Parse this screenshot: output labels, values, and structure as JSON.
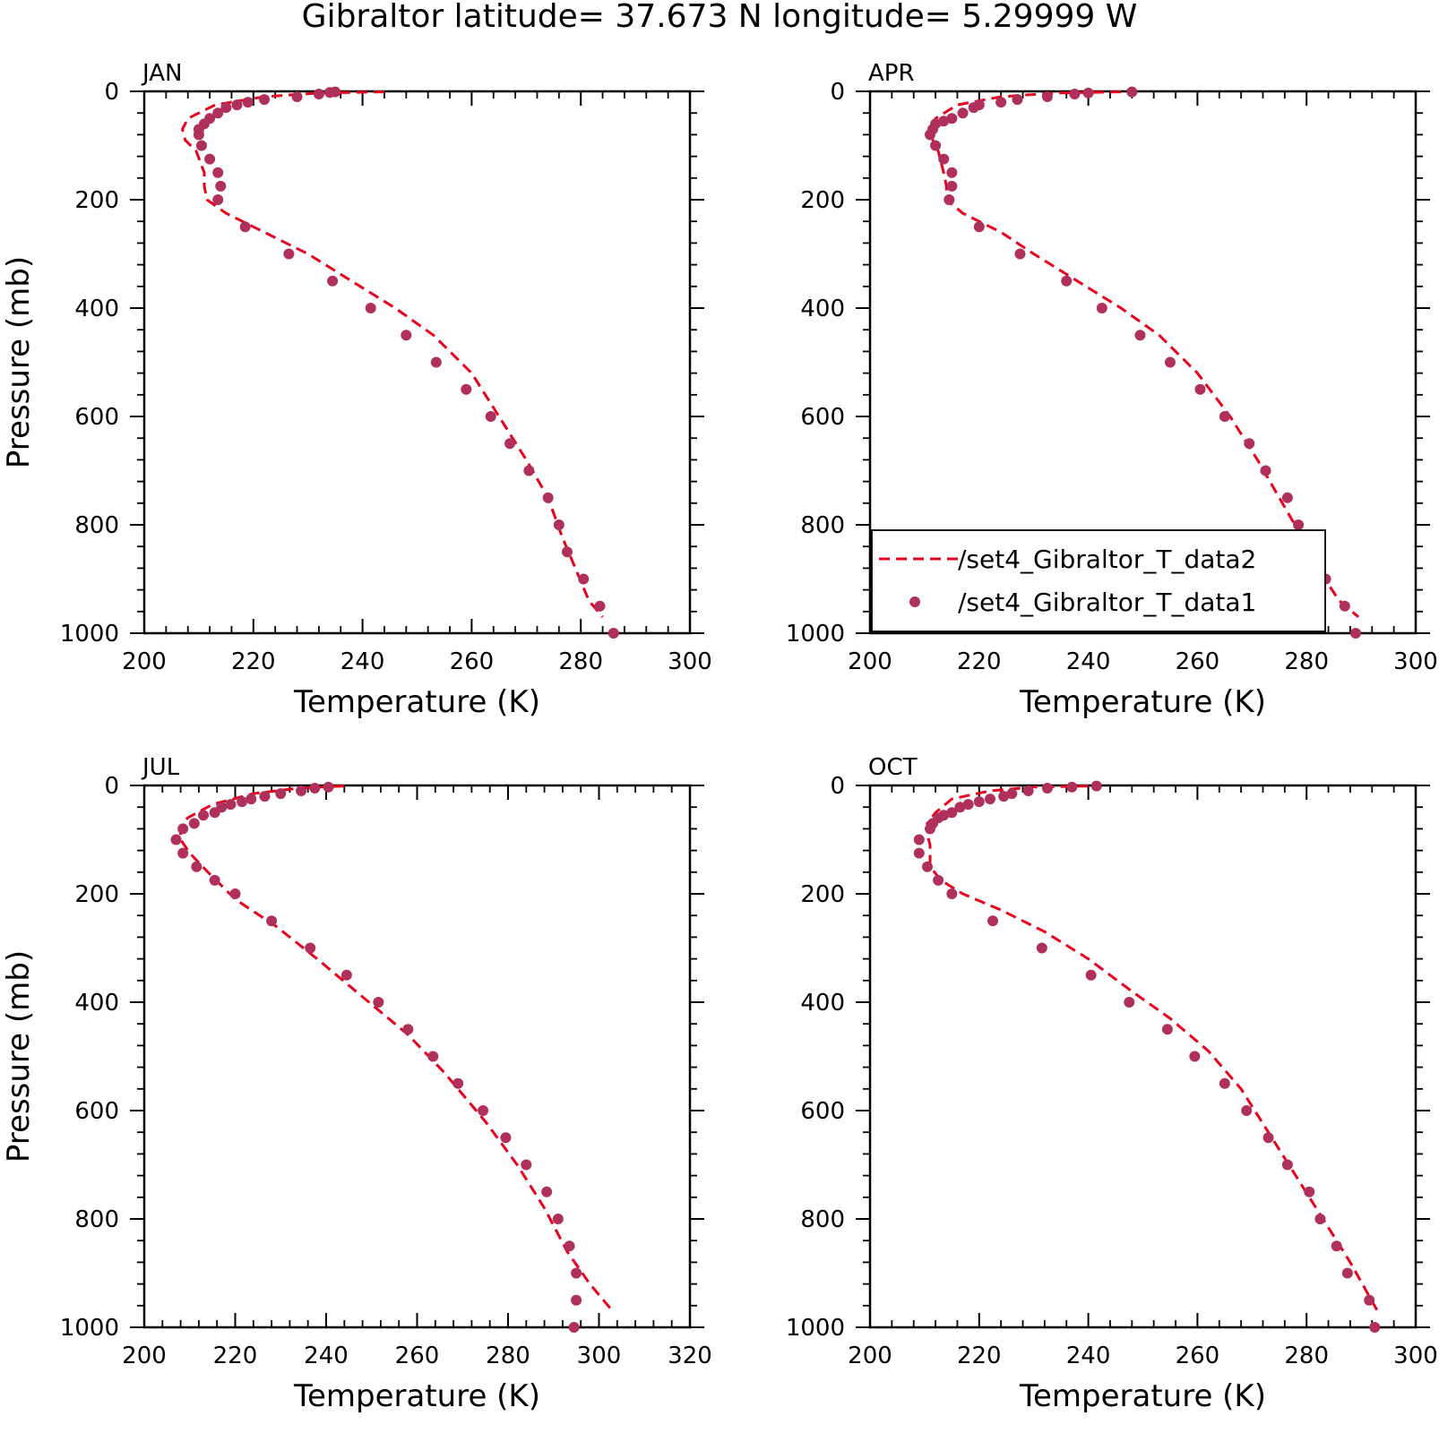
{
  "figure": {
    "title": "Gibraltor  latitude= 37.673 N longitude= 5.29999 W"
  },
  "colors": {
    "model_line": "#e8001c",
    "obs_points": "#b0305c",
    "axes": "#000000"
  },
  "chart_data": [
    {
      "type": "line",
      "panel": "JAN",
      "xlabel": "Temperature (K)",
      "ylabel": "Pressure (mb)",
      "xlim": [
        200,
        300
      ],
      "ylim": [
        1000,
        0
      ],
      "xticks": [
        200,
        220,
        240,
        260,
        280,
        300
      ],
      "yticks": [
        0,
        200,
        400,
        600,
        800,
        1000
      ],
      "series": [
        {
          "name": "/set4_Gibraltor_T_data2",
          "style": "dashed",
          "x": [
            244,
            232,
            222,
            213,
            208,
            207,
            207.5,
            209.5,
            211,
            211,
            211.5,
            215,
            222,
            230,
            238,
            246,
            253,
            260,
            265,
            270,
            274,
            276.5,
            279,
            281.5,
            284
          ],
          "y": [
            1,
            3,
            10,
            25,
            50,
            70,
            90,
            110,
            150,
            175,
            200,
            225,
            260,
            300,
            350,
            400,
            450,
            520,
            600,
            680,
            750,
            820,
            880,
            940,
            970
          ]
        },
        {
          "name": "/set4_Gibraltor_T_data1",
          "style": "points",
          "x": [
            235,
            234,
            232,
            228,
            222,
            219,
            217,
            215,
            213.5,
            212,
            211,
            210,
            210,
            210.5,
            212,
            213.5,
            214,
            213.5,
            218.5,
            226.5,
            234.5,
            241.5,
            248,
            253.5,
            259,
            263.5,
            267,
            270.5,
            274,
            276,
            277.5,
            280.5,
            283.5,
            286
          ],
          "y": [
            1,
            2,
            5,
            10,
            15,
            20,
            25,
            30,
            40,
            50,
            60,
            70,
            80,
            100,
            125,
            150,
            175,
            200,
            250,
            300,
            350,
            400,
            450,
            500,
            550,
            600,
            650,
            700,
            750,
            800,
            850,
            900,
            950,
            1000
          ]
        }
      ]
    },
    {
      "type": "line",
      "panel": "APR",
      "xlabel": "Temperature (K)",
      "ylabel": "",
      "xlim": [
        200,
        300
      ],
      "ylim": [
        1000,
        0
      ],
      "xticks": [
        200,
        220,
        240,
        260,
        280,
        300
      ],
      "yticks": [
        0,
        200,
        400,
        600,
        800,
        1000
      ],
      "legend": {
        "position": "bottom-right",
        "entries": [
          "/set4_Gibraltor_T_data2",
          "/set4_Gibraltor_T_data1"
        ]
      },
      "series": [
        {
          "name": "/set4_Gibraltor_T_data2",
          "style": "dashed",
          "x": [
            246,
            234,
            224,
            216,
            212,
            211,
            211.5,
            212.5,
            213.5,
            214,
            214,
            217,
            224,
            230,
            238,
            246,
            253,
            260,
            266,
            271,
            275,
            279,
            282,
            286,
            289.5
          ],
          "y": [
            1,
            3,
            10,
            25,
            50,
            70,
            90,
            110,
            150,
            175,
            200,
            225,
            260,
            300,
            350,
            400,
            450,
            520,
            600,
            680,
            750,
            820,
            880,
            940,
            970
          ]
        },
        {
          "name": "/set4_Gibraltor_T_data1",
          "style": "points",
          "x": [
            248,
            240,
            237.5,
            232.5,
            227,
            224,
            220,
            219,
            217,
            215,
            213.5,
            212,
            211.5,
            211,
            212,
            213.5,
            215,
            215,
            214.5,
            220,
            227.5,
            236,
            242.5,
            249.5,
            255,
            260.5,
            265,
            269.5,
            272.5,
            276.5,
            278.5,
            281,
            283.5,
            287,
            289
          ],
          "y": [
            1,
            3,
            5,
            10,
            15,
            20,
            25,
            30,
            40,
            50,
            55,
            60,
            70,
            80,
            100,
            125,
            150,
            175,
            200,
            250,
            300,
            350,
            400,
            450,
            500,
            550,
            600,
            650,
            700,
            750,
            800,
            850,
            900,
            950,
            1000
          ]
        }
      ]
    },
    {
      "type": "line",
      "panel": "JUL",
      "xlabel": "Temperature (K)",
      "ylabel": "Pressure (mb)",
      "xlim": [
        200,
        320
      ],
      "ylim": [
        1000,
        0
      ],
      "xticks": [
        200,
        220,
        240,
        260,
        280,
        300,
        320
      ],
      "yticks": [
        0,
        200,
        400,
        600,
        800,
        1000
      ],
      "series": [
        {
          "name": "/set4_Gibraltor_T_data2",
          "style": "dashed",
          "x": [
            244,
            234,
            224,
            215,
            209.5,
            208,
            208,
            210,
            214,
            220,
            229,
            238,
            248,
            258,
            266,
            275,
            282,
            288,
            293,
            298,
            303
          ],
          "y": [
            1,
            5,
            15,
            35,
            60,
            80,
            100,
            125,
            160,
            210,
            260,
            320,
            390,
            460,
            530,
            620,
            700,
            780,
            860,
            920,
            970
          ]
        },
        {
          "name": "/set4_Gibraltor_T_data1",
          "style": "points",
          "x": [
            240.5,
            237.5,
            234.5,
            230,
            226.5,
            223.5,
            221.5,
            219,
            217,
            215.5,
            213,
            211,
            208.5,
            207,
            208.5,
            211.5,
            215.5,
            220,
            228,
            236.5,
            244.5,
            251.5,
            258,
            263.5,
            269,
            274.5,
            279.5,
            284,
            288.5,
            291,
            293.5,
            295,
            295,
            294.5
          ],
          "y": [
            3,
            5,
            10,
            15,
            20,
            25,
            30,
            35,
            40,
            50,
            55,
            70,
            80,
            100,
            125,
            150,
            175,
            200,
            250,
            300,
            350,
            400,
            450,
            500,
            550,
            600,
            650,
            700,
            750,
            800,
            850,
            900,
            950,
            1000
          ]
        }
      ]
    },
    {
      "type": "line",
      "panel": "OCT",
      "xlabel": "Temperature (K)",
      "ylabel": "",
      "xlim": [
        200,
        300
      ],
      "ylim": [
        1000,
        0
      ],
      "xticks": [
        200,
        220,
        240,
        260,
        280,
        300
      ],
      "yticks": [
        0,
        200,
        400,
        600,
        800,
        1000
      ],
      "series": [
        {
          "name": "/set4_Gibraltor_T_data2",
          "style": "dashed",
          "x": [
            240,
            230,
            222,
            215,
            212,
            210.5,
            210.5,
            211,
            211,
            213,
            217,
            224,
            232,
            240,
            248,
            255,
            262,
            268,
            273,
            278,
            283,
            288,
            293
          ],
          "y": [
            1,
            3,
            10,
            25,
            50,
            70,
            90,
            110,
            150,
            175,
            200,
            230,
            270,
            320,
            380,
            430,
            490,
            560,
            640,
            720,
            800,
            880,
            970
          ]
        },
        {
          "name": "/set4_Gibraltor_T_data1",
          "style": "points",
          "x": [
            241.5,
            237,
            232.5,
            229,
            226,
            224.5,
            222,
            220,
            218,
            216.5,
            215,
            213.5,
            212.5,
            211.5,
            211,
            209,
            209,
            210.5,
            212.5,
            215,
            222.5,
            231.5,
            240.5,
            247.5,
            254.5,
            259.5,
            265,
            269,
            273,
            276.5,
            280.5,
            282.5,
            285.5,
            287.5,
            291.5,
            292.5
          ],
          "y": [
            1,
            3,
            5,
            10,
            15,
            20,
            25,
            30,
            35,
            40,
            50,
            55,
            60,
            70,
            80,
            100,
            125,
            150,
            175,
            200,
            250,
            300,
            350,
            400,
            450,
            500,
            550,
            600,
            650,
            700,
            750,
            800,
            850,
            900,
            950,
            1000
          ]
        }
      ]
    }
  ]
}
